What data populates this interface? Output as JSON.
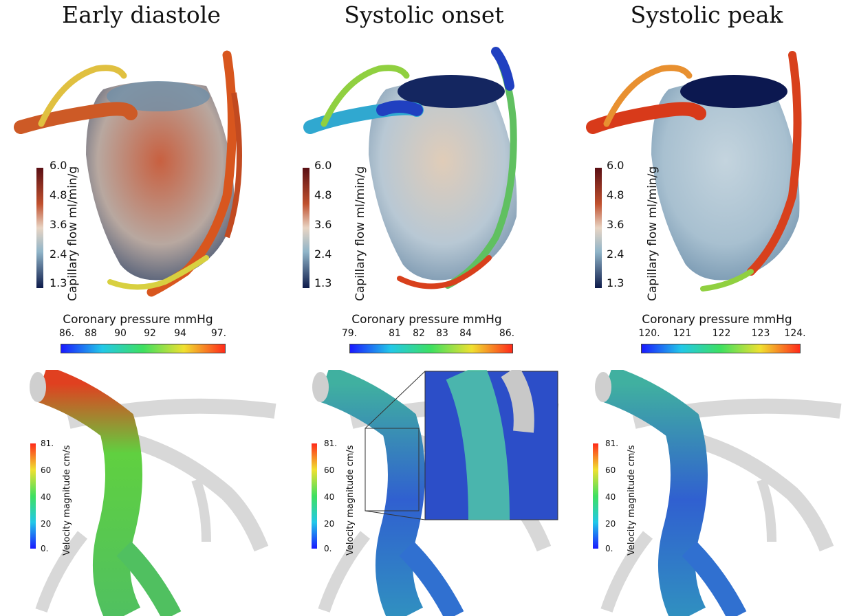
{
  "panels": [
    {
      "title": "Early diastole",
      "capillary": {
        "label": "Capillary flow ml/min/g",
        "ticks": [
          "6.0",
          "4.8",
          "3.6",
          "2.4",
          "1.3"
        ]
      },
      "pressure": {
        "label": "Coronary pressure mmHg",
        "ticks": [
          "86.",
          "88",
          "90",
          "92",
          "94",
          "97."
        ]
      },
      "velocity": {
        "label": "Velocity magnitude cm/s",
        "ticks": [
          "81.",
          "60",
          "40",
          "20",
          "0."
        ]
      }
    },
    {
      "title": "Systolic onset",
      "capillary": {
        "label": "Capillary flow ml/min/g",
        "ticks": [
          "6.0",
          "4.8",
          "3.6",
          "2.4",
          "1.3"
        ]
      },
      "pressure": {
        "label": "Coronary pressure mmHg",
        "ticks": [
          "79.",
          "81",
          "82",
          "83",
          "84",
          "86."
        ]
      },
      "velocity": {
        "label": "Velocity magnitude cm/s",
        "ticks": [
          "81.",
          "60",
          "40",
          "20",
          "0."
        ]
      }
    },
    {
      "title": "Systolic peak",
      "capillary": {
        "label": "Capillary flow ml/min/g",
        "ticks": [
          "6.0",
          "4.8",
          "3.6",
          "2.4",
          "1.3"
        ]
      },
      "pressure": {
        "label": "Coronary pressure mmHg",
        "ticks": [
          "120.",
          "121",
          "122",
          "123",
          "124."
        ]
      },
      "velocity": {
        "label": "Velocity magnitude cm/s",
        "ticks": [
          "81.",
          "60",
          "40",
          "20",
          "0."
        ]
      }
    }
  ]
}
